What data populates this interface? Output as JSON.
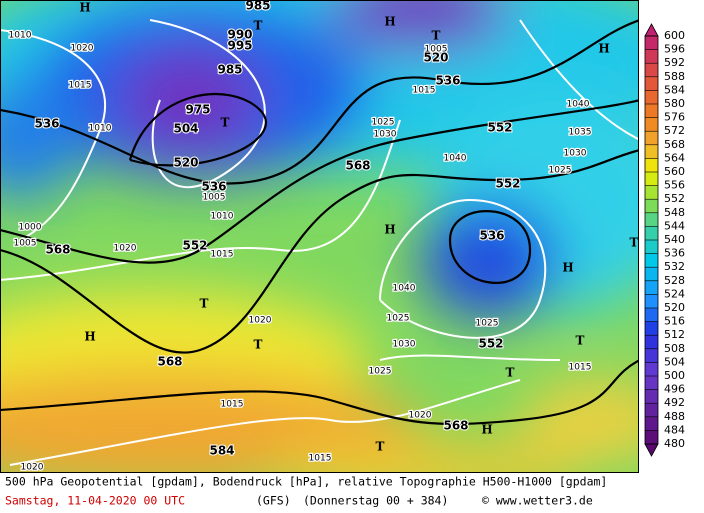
{
  "map": {
    "labels": [
      "H",
      "1010",
      "1020",
      "1015",
      "536",
      "1010",
      "504",
      "T",
      "975",
      "520",
      "985",
      "990",
      "995",
      "985",
      "T",
      "536",
      "1005",
      "1010",
      "552",
      "1015",
      "1020",
      "568",
      "1005",
      "1000",
      "H",
      "T",
      "568",
      "1020",
      "T",
      "1015",
      "584",
      "1020",
      "1015",
      "T",
      "1020",
      "568",
      "H",
      "1025",
      "T",
      "1030",
      "552",
      "1025",
      "1025",
      "1040",
      "536",
      "H",
      "T",
      "1015",
      "552",
      "1025",
      "1040",
      "568",
      "1030",
      "1025",
      "552",
      "1035",
      "1040",
      "H",
      "1030",
      "T",
      "H",
      "T",
      "1005",
      "520",
      "536",
      "1015",
      "H"
    ]
  },
  "legend": {
    "labels": [
      "600",
      "596",
      "592",
      "588",
      "584",
      "580",
      "576",
      "572",
      "568",
      "564",
      "560",
      "556",
      "552",
      "548",
      "544",
      "540",
      "536",
      "532",
      "528",
      "524",
      "520",
      "516",
      "512",
      "508",
      "504",
      "500",
      "496",
      "492",
      "488",
      "484",
      "480"
    ]
  },
  "footer": {
    "line1": "500 hPa Geopotential [gpdam], Bodendruck [hPa], relative Topographie H500-H1000 [gpdam]",
    "date": "Samstag, 11-04-2020  00 UTC",
    "model": "(GFS)",
    "run": "(Donnerstag 00 + 384)",
    "copyright": "© www.wetter3.de"
  }
}
